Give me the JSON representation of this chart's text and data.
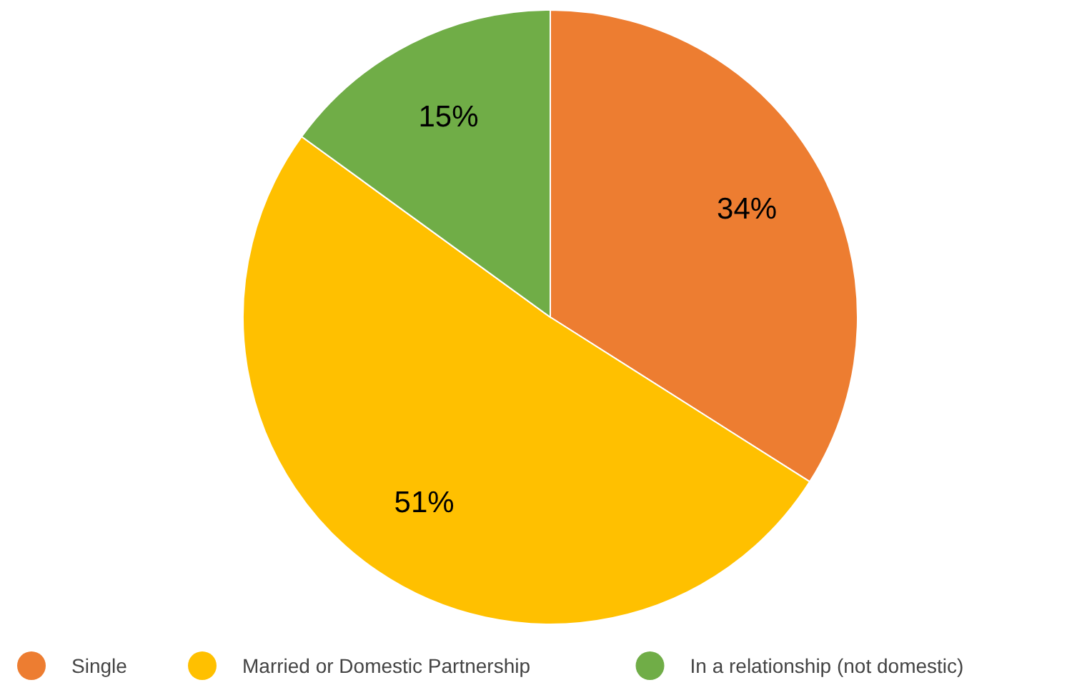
{
  "chart_data": {
    "type": "pie",
    "categories": [
      "Single",
      "Married or Domestic Partnership",
      "In a relationship (not domestic)"
    ],
    "values": [
      34,
      51,
      15
    ],
    "colors": [
      "#ed7d31",
      "#ffc000",
      "#70ad47"
    ],
    "value_labels": [
      "34%",
      "51%",
      "15%"
    ],
    "legend": "bottom"
  }
}
